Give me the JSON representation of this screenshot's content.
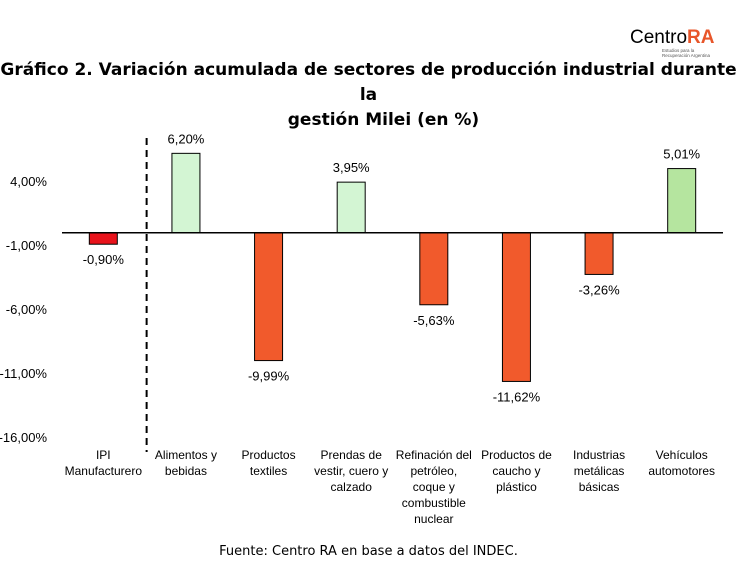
{
  "logo": {
    "brand_main": "Centro",
    "brand_accent": "RA",
    "tagline_1": "Estudios para la",
    "tagline_2": "Recuperación Argentina"
  },
  "title_line1": "Gráfico 2. Variación acumulada de sectores de producción industrial durante la",
  "title_line2": "gestión Milei (en %)",
  "source": "Fuente: Centro RA en base a datos del INDEC.",
  "chart_data": {
    "type": "bar",
    "categories": [
      [
        "IPI",
        "Manufacturero"
      ],
      [
        "Alimentos y",
        "bebidas"
      ],
      [
        "Productos",
        "textiles"
      ],
      [
        "Prendas de",
        "vestir, cuero y",
        "calzado"
      ],
      [
        "Refinación del",
        "petróleo,",
        "coque y",
        "combustible",
        "nuclear"
      ],
      [
        "Productos de",
        "caucho y",
        "plástico"
      ],
      [
        "Industrias",
        "metálicas",
        "básicas"
      ],
      [
        "Vehículos",
        "automotores"
      ]
    ],
    "values": [
      -0.9,
      6.2,
      -9.99,
      3.95,
      -5.63,
      -11.62,
      -3.26,
      5.01
    ],
    "value_labels": [
      "-0,90%",
      "6,20%",
      "-9,99%",
      "3,95%",
      "-5,63%",
      "-11,62%",
      "-3,26%",
      "5,01%"
    ],
    "bar_colors": [
      "#e8131b",
      "#d3f5d3",
      "#f15a2c",
      "#d3f5d3",
      "#f15a2c",
      "#f15a2c",
      "#f15a2c",
      "#b5e59f"
    ],
    "ytick_values": [
      4,
      -1,
      -6,
      -11,
      -16
    ],
    "ytick_labels": [
      "4,00%",
      "-1,00%",
      "-6,00%",
      "-11,00%",
      "-16,00%"
    ],
    "ylim": [
      -16,
      4
    ],
    "separator_after_index": 0,
    "grid": false
  }
}
